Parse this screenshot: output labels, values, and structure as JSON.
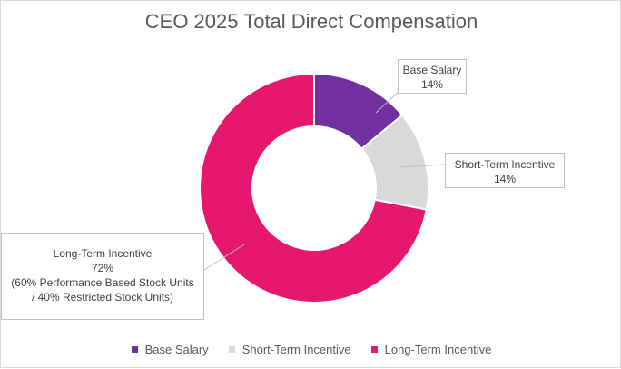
{
  "chart_data": {
    "type": "pie",
    "title": "CEO 2025 Total Direct Compensation",
    "categories": [
      "Base Salary",
      "Short-Term Incentive",
      "Long-Term Incentive"
    ],
    "values": [
      14,
      14,
      72
    ],
    "unit": "%",
    "colors": [
      "#7030a0",
      "#d9d9d9",
      "#e6176e"
    ],
    "labels": [
      {
        "name": "Base Salary",
        "value": "14%"
      },
      {
        "name": "Short-Term Incentive",
        "value": "14%"
      },
      {
        "name": "Long-Term Incentive",
        "value": "72%",
        "note_line1": "(60% Performance Based Stock Units",
        "note_line2": "/ 40% Restricted Stock Units)"
      }
    ],
    "legend": [
      "Base Salary",
      "Short-Term Incentive",
      "Long-Term Incentive"
    ],
    "legend_position": "bottom",
    "hole": "donut"
  }
}
